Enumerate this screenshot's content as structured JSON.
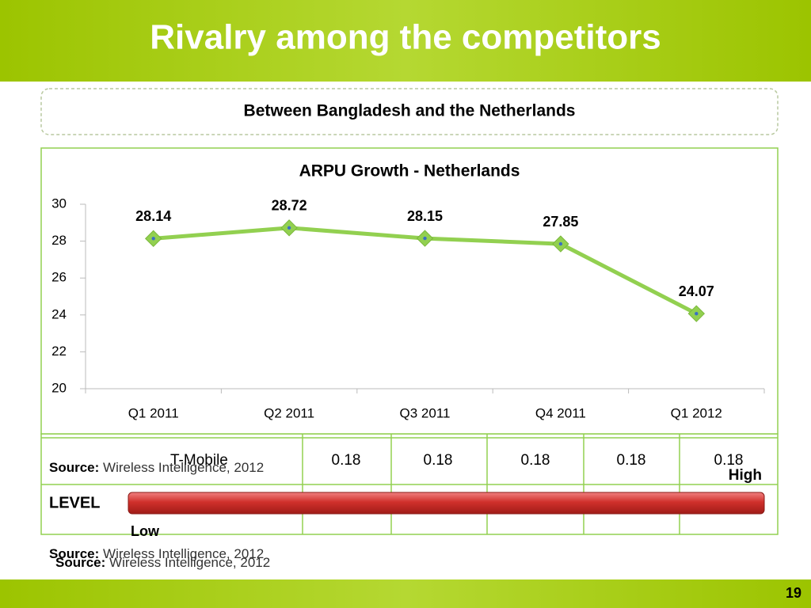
{
  "slide": {
    "title": "Rivalry among the competitors",
    "subtitle": "Between Bangladesh and the Netherlands",
    "page_number": "19"
  },
  "chart_data": {
    "type": "line",
    "title": "ARPU Growth - Netherlands",
    "categories": [
      "Q1 2011",
      "Q2 2011",
      "Q3 2011",
      "Q4 2011",
      "Q1 2012"
    ],
    "values": [
      28.14,
      28.72,
      28.15,
      27.85,
      24.07
    ],
    "color": "#92d050",
    "ylim": [
      20,
      30
    ],
    "yticks": [
      20,
      22,
      24,
      26,
      28,
      30
    ]
  },
  "table": {
    "rows": [
      [
        "T-Mobile",
        "0.18",
        "0.18",
        "0.18",
        "0.18",
        "0.18"
      ]
    ]
  },
  "sources": [
    {
      "label": "Source:",
      "text": "Wireless Intelligence, 2012"
    },
    {
      "label": "Source:",
      "text": "Wireless Intelligence, 2012"
    },
    {
      "label": "Source:",
      "text": "Wireless Intelligence, 2012"
    }
  ],
  "level": {
    "label": "LEVEL",
    "high": "High",
    "low": "Low"
  }
}
